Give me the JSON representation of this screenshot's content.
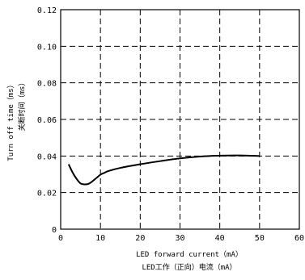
{
  "chart_data": {
    "type": "line",
    "xlabel": "LED forward current（mA）",
    "xlabel_cn": "LED工作（正向）电流（mA）",
    "ylabel": "Turn off time（ms）",
    "ylabel_cn": "关断时间（ms）",
    "xlim": [
      0,
      60
    ],
    "ylim": [
      0,
      0.12
    ],
    "xticks": [
      "0",
      "10",
      "20",
      "30",
      "40",
      "50",
      "60"
    ],
    "yticks": [
      "0",
      "0.02",
      "0.04",
      "0.06",
      "0.08",
      "0.10",
      "0.12"
    ],
    "grid": true,
    "series": [
      {
        "x": [
          2,
          3,
          4,
          5,
          6,
          7,
          8,
          9,
          10,
          11,
          12,
          15,
          20,
          25,
          30,
          35,
          40,
          45,
          50
        ],
        "values": [
          0.0355,
          0.031,
          0.0275,
          0.025,
          0.0245,
          0.0248,
          0.0262,
          0.028,
          0.0298,
          0.0308,
          0.0318,
          0.0335,
          0.0355,
          0.0372,
          0.0387,
          0.0397,
          0.0402,
          0.0403,
          0.04
        ]
      }
    ]
  }
}
